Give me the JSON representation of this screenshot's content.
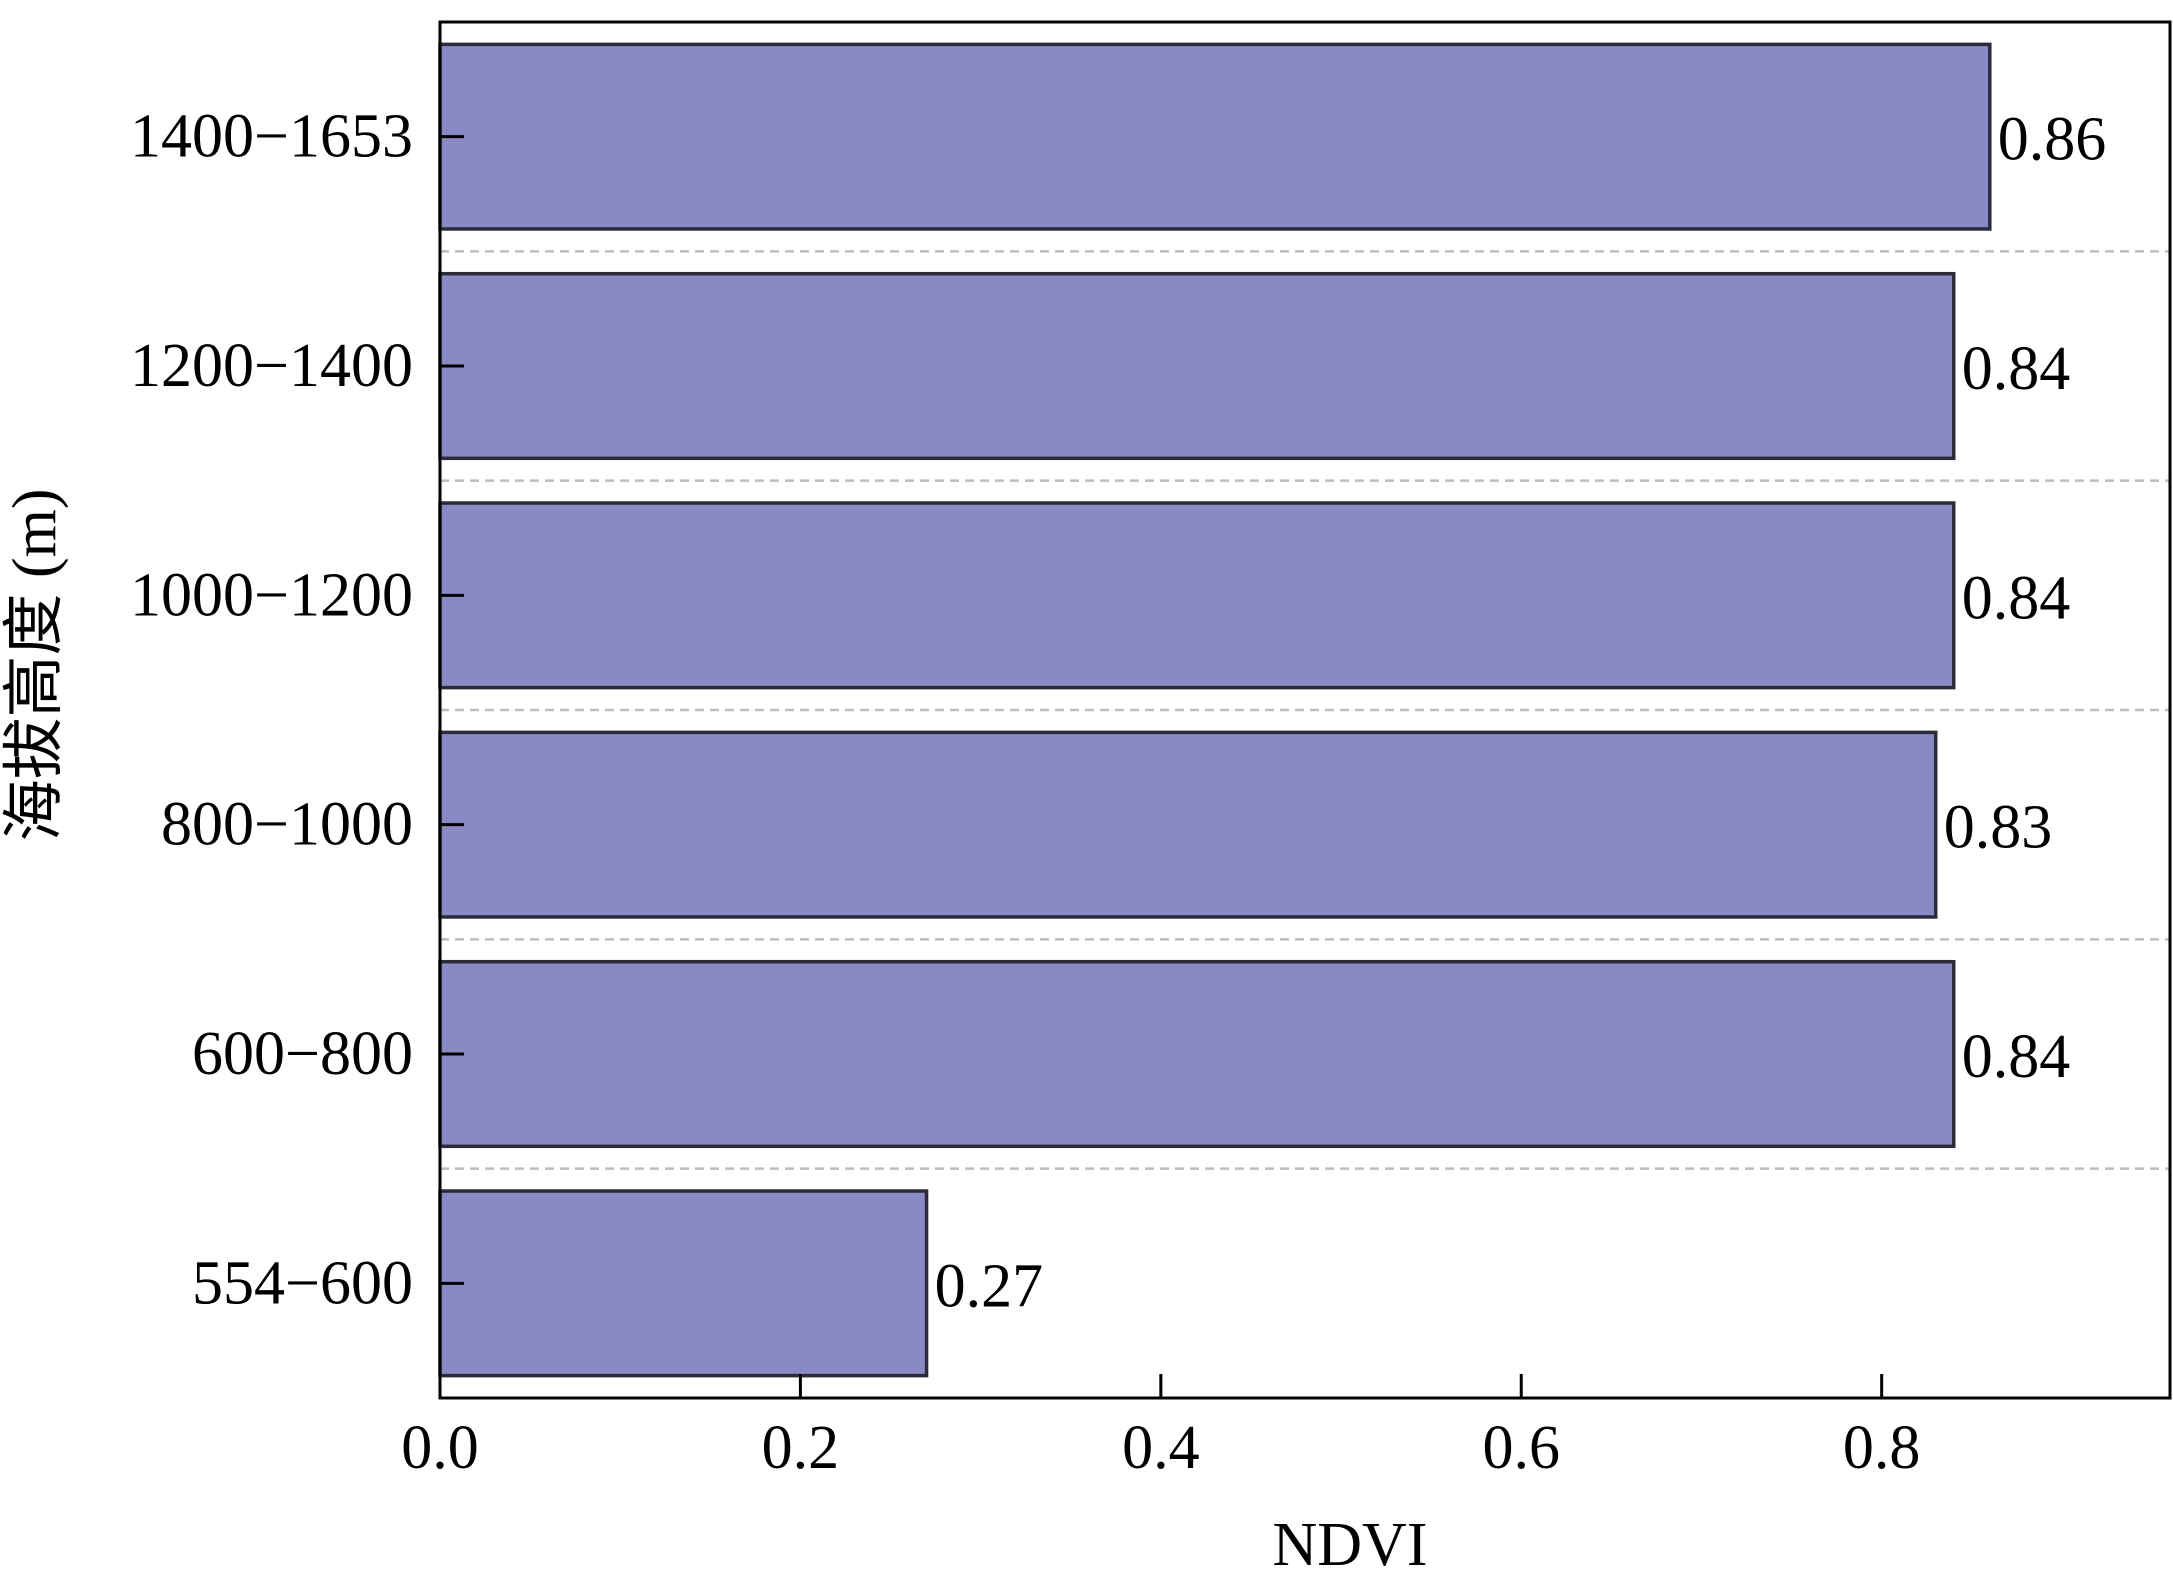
{
  "chart_data": {
    "type": "bar",
    "orientation": "horizontal",
    "title": "",
    "xlabel": "NDVI",
    "ylabel": "海拔高度 (m)",
    "categories": [
      "1400−1653",
      "1200−1400",
      "1000−1200",
      "800−1000",
      "600−800",
      "554−600"
    ],
    "values": [
      0.86,
      0.84,
      0.84,
      0.83,
      0.84,
      0.27
    ],
    "value_labels": [
      "0.86",
      "0.84",
      "0.84",
      "0.83",
      "0.84",
      "0.27"
    ],
    "xlim": [
      0.0,
      0.96
    ],
    "x_ticks": [
      0.0,
      0.2,
      0.4,
      0.6,
      0.8
    ],
    "x_tick_labels": [
      "0.0",
      "0.2",
      "0.4",
      "0.6",
      "0.8"
    ],
    "grid": "horizontal dashed separators between bars",
    "legend": "none",
    "bar_color": "#8989c3",
    "bar_edge_color": "#2b2b3a",
    "grid_color": "#bdbdbd"
  }
}
